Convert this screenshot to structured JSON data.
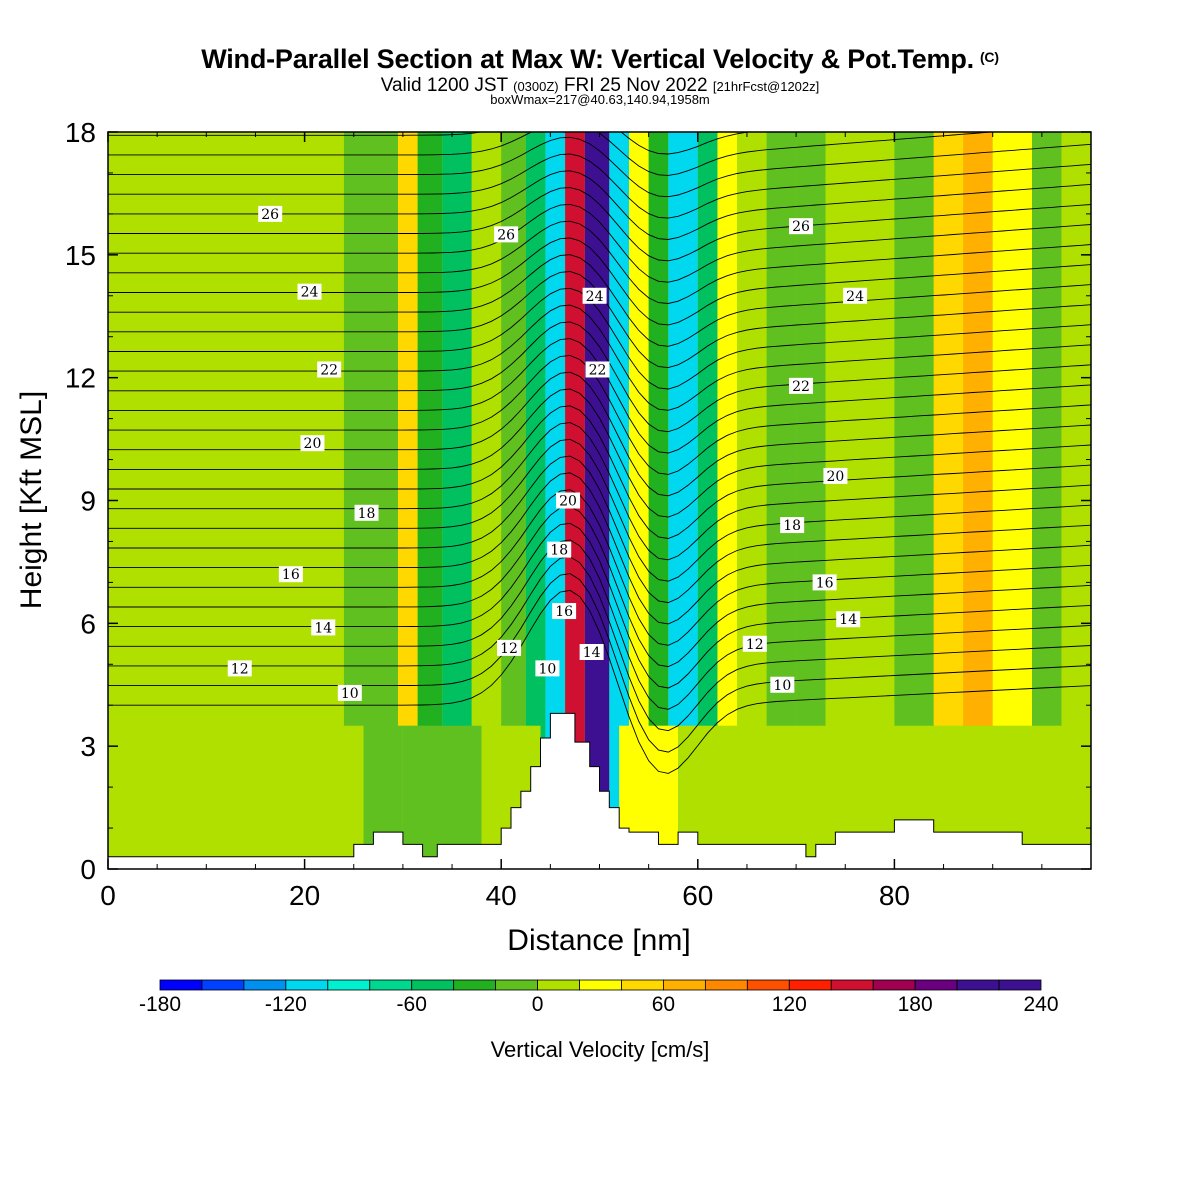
{
  "header": {
    "title": "Wind-Parallel Section at Max W: Vertical Velocity & Pot.Temp.",
    "copyright": "(C)",
    "valid_prefix": "Valid 1200 JST",
    "valid_utc": "(0300Z)",
    "valid_date": "FRI 25 Nov 2022",
    "forecast": "[21hrFcst@1202z]",
    "box": "boxWmax=217@40.63,140.94,1958m"
  },
  "chart_data": {
    "type": "heatmap",
    "xlabel": "Distance [nm]",
    "ylabel": "Height [Kft MSL]",
    "xlim": [
      0,
      100
    ],
    "ylim": [
      0,
      18
    ],
    "xticks": [
      0,
      20,
      40,
      60,
      80
    ],
    "yticks": [
      0,
      3,
      6,
      9,
      12,
      15,
      18
    ],
    "colorbar": {
      "label": "Vertical Velocity [cm/s]",
      "ticks": [
        -180,
        -120,
        -60,
        0,
        60,
        120,
        180,
        240
      ],
      "min": -180,
      "max": 240,
      "step": 20,
      "colors": [
        "#0000ff",
        "#0040ff",
        "#0090f0",
        "#00d8f0",
        "#00f0d0",
        "#00d890",
        "#00c060",
        "#20b020",
        "#60c020",
        "#b0e000",
        "#ffff00",
        "#ffd800",
        "#ffb000",
        "#ff8800",
        "#ff5000",
        "#ff2000",
        "#d01030",
        "#a00050",
        "#6a0080",
        "#3c1090",
        "#3c1090"
      ]
    },
    "vertical_velocity_cells": [
      {
        "x0": 0,
        "x1": 3,
        "w": 10
      },
      {
        "x0": 3,
        "x1": 14,
        "w": 0
      },
      {
        "x0": 14,
        "x1": 20,
        "w": 10
      },
      {
        "x0": 20,
        "x1": 24,
        "w": 0
      },
      {
        "x0": 24,
        "x1": 29.5,
        "w": -10
      },
      {
        "x0": 29.5,
        "x1": 31.5,
        "w": 40
      },
      {
        "x0": 31.5,
        "x1": 34,
        "w": -30
      },
      {
        "x0": 34,
        "x1": 37,
        "w": -50
      },
      {
        "x0": 37,
        "x1": 40,
        "w": 0
      },
      {
        "x0": 40,
        "x1": 42.5,
        "w": -20
      },
      {
        "x0": 42.5,
        "x1": 44.5,
        "w": -60
      },
      {
        "x0": 44.5,
        "x1": 46.5,
        "w": -110
      },
      {
        "x0": 46.5,
        "x1": 48.5,
        "w": 150
      },
      {
        "x0": 48.5,
        "x1": 51,
        "w": 200
      },
      {
        "x0": 51,
        "x1": 53,
        "w": -120
      },
      {
        "x0": 53,
        "x1": 55,
        "w": 30
      },
      {
        "x0": 55,
        "x1": 57,
        "w": -40
      },
      {
        "x0": 57,
        "x1": 60,
        "w": -110
      },
      {
        "x0": 60,
        "x1": 62,
        "w": -60
      },
      {
        "x0": 62,
        "x1": 64,
        "w": 30
      },
      {
        "x0": 64,
        "x1": 67,
        "w": 10
      },
      {
        "x0": 67,
        "x1": 70,
        "w": -20
      },
      {
        "x0": 70,
        "x1": 73,
        "w": -10
      },
      {
        "x0": 73,
        "x1": 76,
        "w": 10
      },
      {
        "x0": 76,
        "x1": 80,
        "w": 0
      },
      {
        "x0": 80,
        "x1": 84,
        "w": -20
      },
      {
        "x0": 84,
        "x1": 87,
        "w": 40
      },
      {
        "x0": 87,
        "x1": 90,
        "w": 60
      },
      {
        "x0": 90,
        "x1": 94,
        "w": 20
      },
      {
        "x0": 94,
        "x1": 97,
        "w": -10
      },
      {
        "x0": 97,
        "x1": 100,
        "w": 10
      }
    ],
    "lower_layer_cells": [
      {
        "x0": 0,
        "x1": 12,
        "w": 10
      },
      {
        "x0": 12,
        "x1": 26,
        "w": 10
      },
      {
        "x0": 26,
        "x1": 30,
        "w": -20
      },
      {
        "x0": 30,
        "x1": 38,
        "w": -20
      },
      {
        "x0": 38,
        "x1": 44,
        "w": 10
      },
      {
        "x0": 52,
        "x1": 58,
        "w": 20
      },
      {
        "x0": 58,
        "x1": 66,
        "w": 10
      },
      {
        "x0": 66,
        "x1": 80,
        "w": 10
      },
      {
        "x0": 80,
        "x1": 88,
        "w": 0
      },
      {
        "x0": 88,
        "x1": 100,
        "w": 0
      }
    ],
    "terrain": [
      [
        0,
        0.3
      ],
      [
        5,
        0.3
      ],
      [
        10,
        0.3
      ],
      [
        15,
        0.3
      ],
      [
        20,
        0.3
      ],
      [
        25,
        0.3
      ],
      [
        25,
        0.6
      ],
      [
        27,
        0.6
      ],
      [
        27,
        0.9
      ],
      [
        30,
        0.9
      ],
      [
        30,
        0.6
      ],
      [
        32,
        0.6
      ],
      [
        32,
        0.3
      ],
      [
        33.5,
        0.3
      ],
      [
        33.5,
        0.6
      ],
      [
        40,
        0.6
      ],
      [
        40,
        1.0
      ],
      [
        41,
        1.0
      ],
      [
        41,
        1.5
      ],
      [
        42,
        1.5
      ],
      [
        42,
        1.9
      ],
      [
        43,
        1.9
      ],
      [
        43,
        2.5
      ],
      [
        44,
        2.5
      ],
      [
        44,
        3.2
      ],
      [
        45,
        3.2
      ],
      [
        45,
        3.8
      ],
      [
        47.5,
        3.8
      ],
      [
        47.5,
        3.1
      ],
      [
        49,
        3.1
      ],
      [
        49,
        2.5
      ],
      [
        50,
        2.5
      ],
      [
        50,
        1.9
      ],
      [
        51,
        1.9
      ],
      [
        51,
        1.5
      ],
      [
        52,
        1.5
      ],
      [
        52,
        1.0
      ],
      [
        53,
        1.0
      ],
      [
        53,
        0.9
      ],
      [
        56,
        0.9
      ],
      [
        56,
        0.6
      ],
      [
        58,
        0.6
      ],
      [
        58,
        0.9
      ],
      [
        60,
        0.9
      ],
      [
        60,
        0.6
      ],
      [
        71,
        0.6
      ],
      [
        71,
        0.3
      ],
      [
        72,
        0.3
      ],
      [
        72,
        0.6
      ],
      [
        74,
        0.6
      ],
      [
        74,
        0.9
      ],
      [
        80,
        0.9
      ],
      [
        80,
        1.2
      ],
      [
        84,
        1.2
      ],
      [
        84,
        0.9
      ],
      [
        93,
        0.9
      ],
      [
        93,
        0.6
      ],
      [
        100,
        0.6
      ]
    ],
    "theta_labels": [
      {
        "text": "26",
        "x": 16.5,
        "y": 16.0
      },
      {
        "text": "26",
        "x": 40.5,
        "y": 15.5
      },
      {
        "text": "26",
        "x": 70.5,
        "y": 15.7
      },
      {
        "text": "24",
        "x": 20.5,
        "y": 14.1
      },
      {
        "text": "24",
        "x": 49.5,
        "y": 14.0
      },
      {
        "text": "24",
        "x": 76.0,
        "y": 14.0
      },
      {
        "text": "22",
        "x": 22.5,
        "y": 12.2
      },
      {
        "text": "22",
        "x": 49.8,
        "y": 12.2
      },
      {
        "text": "22",
        "x": 70.5,
        "y": 11.8
      },
      {
        "text": "20",
        "x": 20.8,
        "y": 10.4
      },
      {
        "text": "20",
        "x": 46.8,
        "y": 9.0
      },
      {
        "text": "20",
        "x": 74.0,
        "y": 9.6
      },
      {
        "text": "18",
        "x": 26.3,
        "y": 8.7
      },
      {
        "text": "18",
        "x": 45.9,
        "y": 7.8
      },
      {
        "text": "18",
        "x": 69.6,
        "y": 8.4
      },
      {
        "text": "16",
        "x": 18.6,
        "y": 7.2
      },
      {
        "text": "16",
        "x": 46.4,
        "y": 6.3
      },
      {
        "text": "16",
        "x": 72.9,
        "y": 7.0
      },
      {
        "text": "14",
        "x": 21.9,
        "y": 5.9
      },
      {
        "text": "14",
        "x": 49.2,
        "y": 5.3
      },
      {
        "text": "14",
        "x": 75.3,
        "y": 6.1
      },
      {
        "text": "12",
        "x": 13.4,
        "y": 4.9
      },
      {
        "text": "12",
        "x": 40.8,
        "y": 5.4
      },
      {
        "text": "12",
        "x": 65.8,
        "y": 5.5
      },
      {
        "text": "10",
        "x": 24.6,
        "y": 4.3
      },
      {
        "text": "10",
        "x": 44.7,
        "y": 4.9
      },
      {
        "text": "10",
        "x": 68.6,
        "y": 4.5
      }
    ]
  }
}
